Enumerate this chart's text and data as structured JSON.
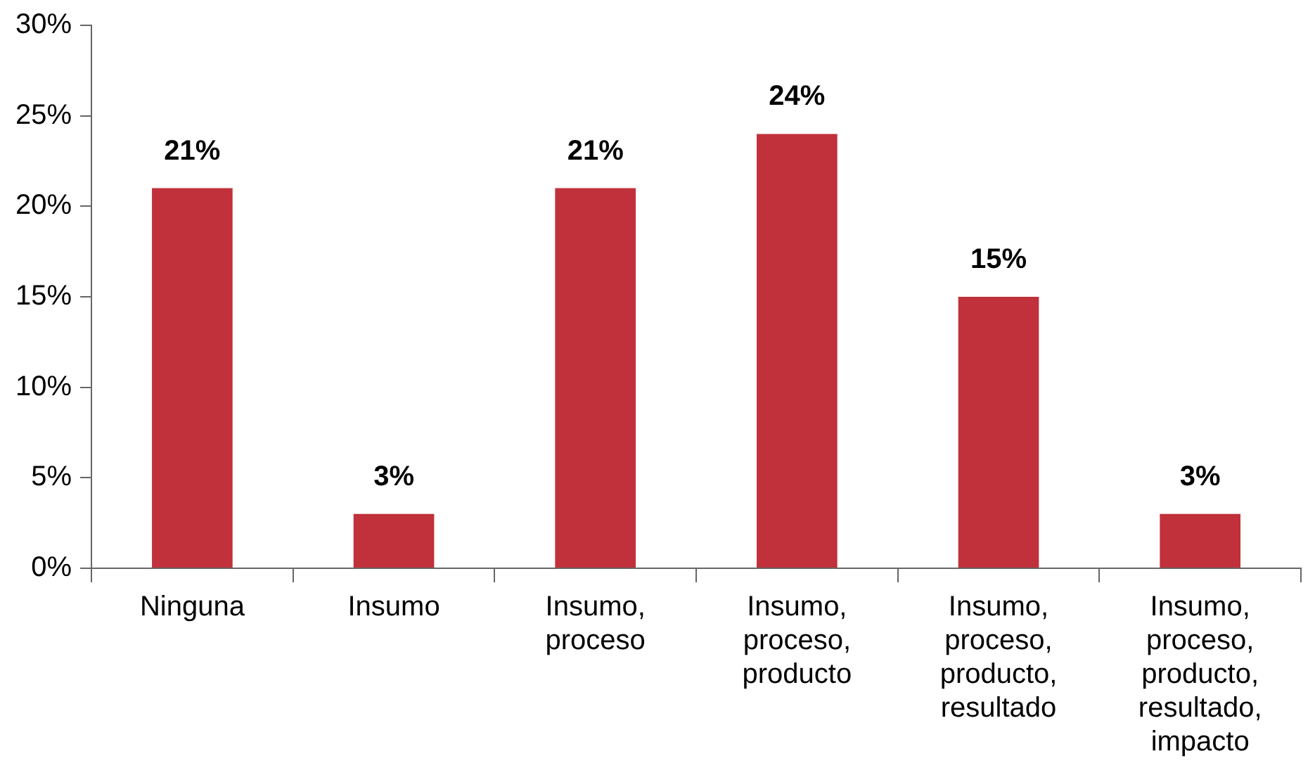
{
  "chart_data": {
    "type": "bar",
    "categories": [
      "Ninguna",
      "Insumo",
      "Insumo, proceso",
      "Insumo, proceso, producto",
      "Insumo, proceso, producto, resultado",
      "Insumo, proceso, producto, resultado, impacto"
    ],
    "values": [
      21,
      3,
      21,
      24,
      15,
      3
    ],
    "color": "#c0313b",
    "ylim": [
      0,
      30
    ],
    "yticks": [
      {
        "value": 0,
        "label": "0%"
      },
      {
        "value": 5,
        "label": "5%"
      },
      {
        "value": 10,
        "label": "10%"
      },
      {
        "value": 15,
        "label": "15%"
      },
      {
        "value": 20,
        "label": "20%"
      },
      {
        "value": 25,
        "label": "25%"
      },
      {
        "value": 30,
        "label": "30%"
      }
    ],
    "value_labels": [
      "21%",
      "3%",
      "21%",
      "24%",
      "15%",
      "3%"
    ],
    "grid": false,
    "legend": false
  }
}
